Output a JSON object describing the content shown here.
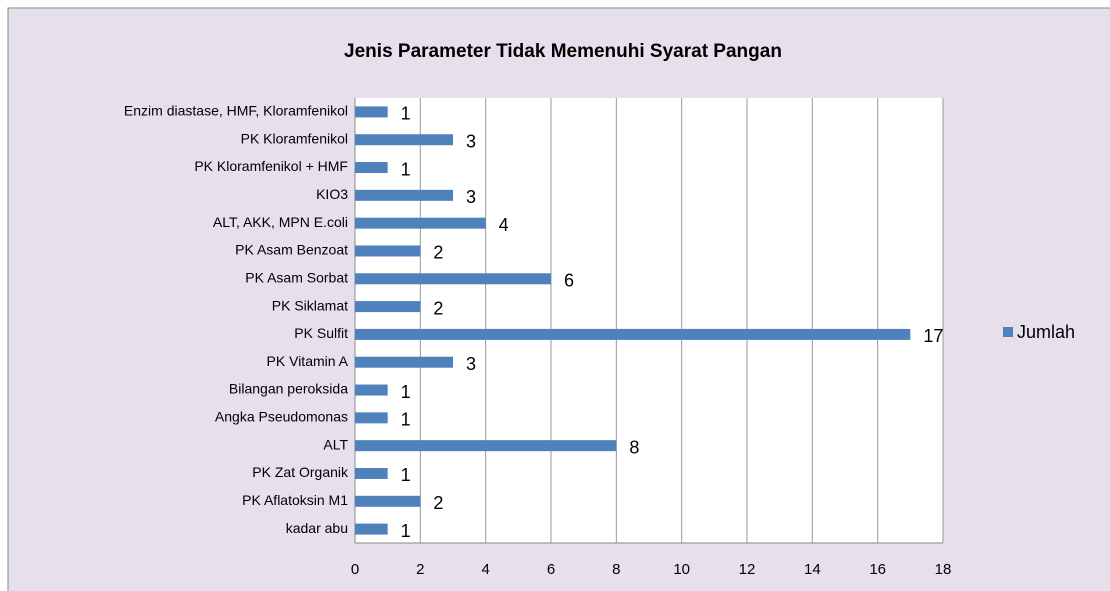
{
  "chart_data": {
    "type": "bar",
    "orientation": "horizontal",
    "title": "Jenis Parameter Tidak Memenuhi Syarat  Pangan",
    "categories": [
      "Enzim diastase, HMF, Kloramfenikol",
      "PK Kloramfenikol",
      "PK Kloramfenikol + HMF",
      "KIO3",
      "ALT, AKK, MPN E.coli",
      "PK Asam Benzoat",
      "PK Asam Sorbat",
      "PK Siklamat",
      "PK Sulfit",
      "PK Vitamin A",
      "Bilangan peroksida",
      "Angka Pseudomonas",
      "ALT",
      "PK Zat Organik",
      "PK Aflatoksin M1",
      "kadar abu"
    ],
    "series": [
      {
        "name": "Jumlah",
        "color": "#4f81bd",
        "values": [
          1,
          3,
          1,
          3,
          4,
          2,
          6,
          2,
          17,
          3,
          1,
          1,
          8,
          1,
          2,
          1
        ]
      }
    ],
    "xlim": [
      0,
      18
    ],
    "xticks": [
      0,
      2,
      4,
      6,
      8,
      10,
      12,
      14,
      16,
      18
    ],
    "grid": true,
    "legend": "right"
  }
}
